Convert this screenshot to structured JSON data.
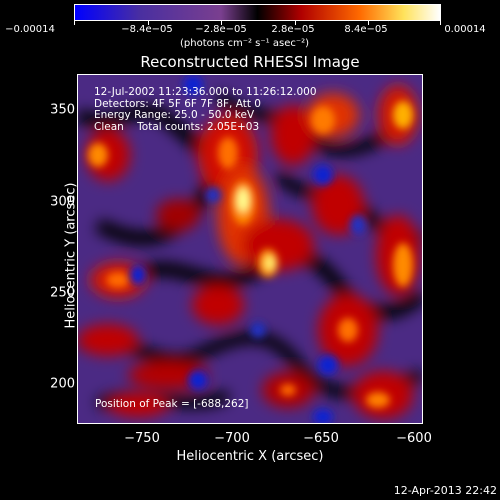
{
  "colorbar": {
    "tick_labels": [
      "−0.00014",
      "−8.4e−05",
      "−2.8e−05",
      "2.8e−05",
      "8.4e−05",
      "0.00014"
    ],
    "units": "(photons cm⁻² s⁻¹ asec⁻²)",
    "colors": [
      "#0000ff",
      "#5a2b8a",
      "#7a3fa0",
      "#000000",
      "#c80000",
      "#ff7a00",
      "#ffff70",
      "#ffffff"
    ]
  },
  "title": "Reconstructed RHESSI Image",
  "info": {
    "line1": "12-Jul-2002 11:23:36.000 to 11:26:12.000",
    "line2": "Detectors: 4F 5F 6F 7F 8F, Att 0",
    "line3": "Energy Range: 25.0 - 50.0 keV",
    "line4": "Clean    Total counts: 2.05E+03"
  },
  "peak_text": "Position of Peak = [-688,262]",
  "axes": {
    "xlabel": "Heliocentric X (arcsec)",
    "ylabel": "Heliocentric Y (arcsec)",
    "xticks": [
      "−750",
      "−700",
      "−650",
      "−600"
    ],
    "yticks": [
      "350",
      "300",
      "250",
      "200"
    ]
  },
  "timestamp": "12-Apr-2013 22:42"
}
